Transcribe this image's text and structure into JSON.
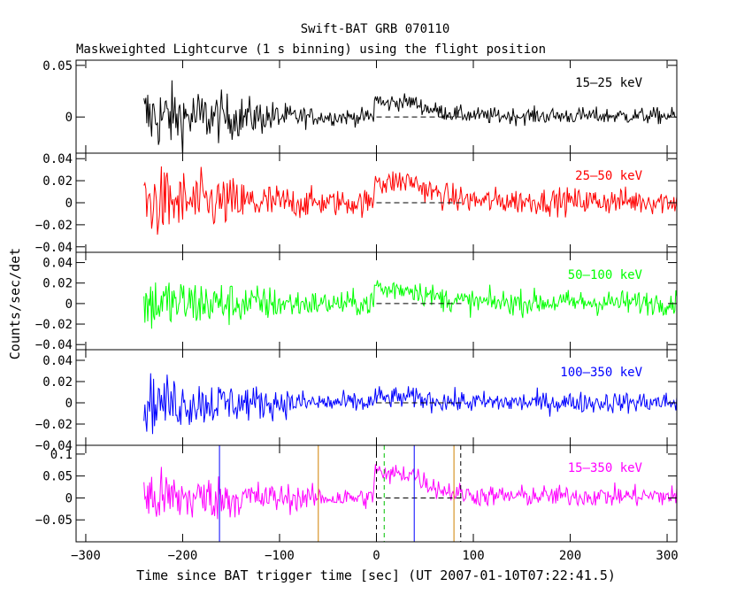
{
  "chart_data": {
    "type": "line",
    "title": "Swift-BAT GRB 070110",
    "subtitle": "Maskweighted Lightcurve (1 s binning) using the flight position",
    "xlabel": "Time since BAT trigger time [sec] (UT 2007-01-10T07:22:41.5)",
    "ylabel": "Counts/sec/det",
    "xlim": [
      -310,
      310
    ],
    "x_ticks": [
      -300,
      -200,
      -100,
      0,
      100,
      200,
      300
    ],
    "data_x_range": [
      -240,
      310
    ],
    "peak_x": 0,
    "grid": false,
    "legend": "inside-panel-right",
    "panels": [
      {
        "label": "15–25 keV",
        "color": "#000000",
        "ylim": [
          -0.035,
          0.055
        ],
        "y_ticks": [
          0.05,
          0
        ],
        "y_tick_labels": [
          "0.05",
          "0"
        ],
        "noise_early": 0.018,
        "noise_late": 0.004,
        "pulse": 0.018,
        "guides": []
      },
      {
        "label": "25–50 keV",
        "color": "#ff0000",
        "ylim": [
          -0.045,
          0.045
        ],
        "y_ticks": [
          0.04,
          0.02,
          0,
          -0.02,
          -0.04
        ],
        "y_tick_labels": [
          "0.04",
          "0.02",
          "0",
          "−0.02",
          "−0.04"
        ],
        "noise_early": 0.017,
        "noise_late": 0.006,
        "pulse": 0.024,
        "guides": []
      },
      {
        "label": "50–100 keV",
        "color": "#00ff00",
        "ylim": [
          -0.045,
          0.05
        ],
        "y_ticks": [
          0.04,
          0.02,
          0,
          -0.02,
          -0.04
        ],
        "y_tick_labels": [
          "0.04",
          "0.02",
          "0",
          "−0.02",
          "−0.04"
        ],
        "noise_early": 0.015,
        "noise_late": 0.006,
        "pulse": 0.018,
        "guides": []
      },
      {
        "label": "100–350 keV",
        "color": "#0000ff",
        "ylim": [
          -0.04,
          0.05
        ],
        "y_ticks": [
          0.04,
          0.02,
          0,
          -0.02,
          -0.04
        ],
        "y_tick_labels": [
          "0.04",
          "0.02",
          "0",
          "−0.02",
          "−0.04"
        ],
        "noise_early": 0.014,
        "noise_late": 0.005,
        "pulse": 0.006,
        "guides": []
      },
      {
        "label": "15–350 keV",
        "color": "#ff00ff",
        "ylim": [
          -0.1,
          0.12
        ],
        "y_ticks": [
          0.1,
          0.05,
          0,
          -0.05
        ],
        "y_tick_labels": [
          "0.1",
          "0.05",
          "0",
          "−0.05"
        ],
        "noise_early": 0.035,
        "noise_late": 0.012,
        "pulse": 0.07,
        "guides": [
          {
            "x": -162,
            "color": "#0000ff",
            "dash": false
          },
          {
            "x": -60,
            "color": "#d08000",
            "dash": false
          },
          {
            "x": 0,
            "color": "#000000",
            "dash": true
          },
          {
            "x": 8,
            "color": "#00c000",
            "dash": true
          },
          {
            "x": 39,
            "color": "#0000ff",
            "dash": false
          },
          {
            "x": 80,
            "color": "#d08000",
            "dash": false
          },
          {
            "x": 87,
            "color": "#000000",
            "dash": true
          }
        ]
      }
    ]
  }
}
